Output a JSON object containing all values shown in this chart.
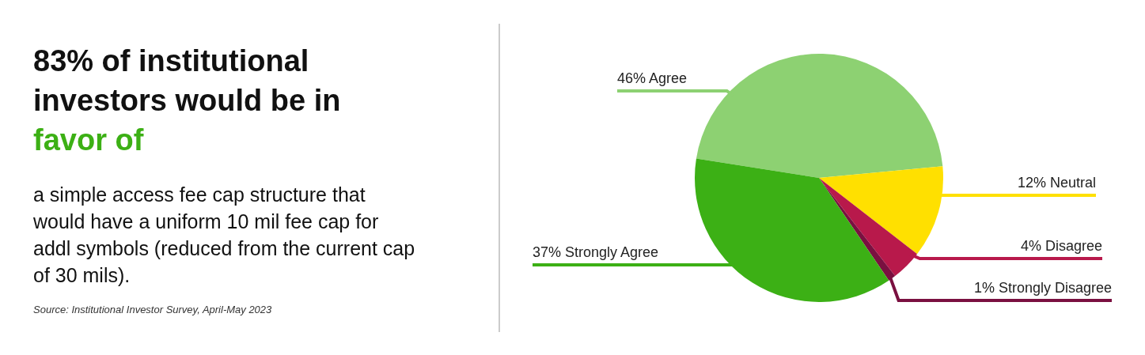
{
  "chart_data": {
    "type": "pie",
    "title": "83% of institutional investors would be in favor of",
    "subtitle": "a simple access fee cap structure that would have a uniform 10 mil fee cap for addl symbols (reduced from the current cap of 30 mils).",
    "annotations": [
      "Source: Institutional Investor Survey, April-May 2023"
    ],
    "categories": [
      "Agree",
      "Neutral",
      "Disagree",
      "Strongly Disagree",
      "Strongly Agree"
    ],
    "values": [
      46,
      12,
      4,
      1,
      37
    ],
    "value_labels": [
      "46%",
      "12%",
      "4%",
      "1%",
      "37%"
    ],
    "colors": [
      "#8dd172",
      "#ffe000",
      "#b8194b",
      "#7a1040",
      "#3cb015"
    ]
  }
}
